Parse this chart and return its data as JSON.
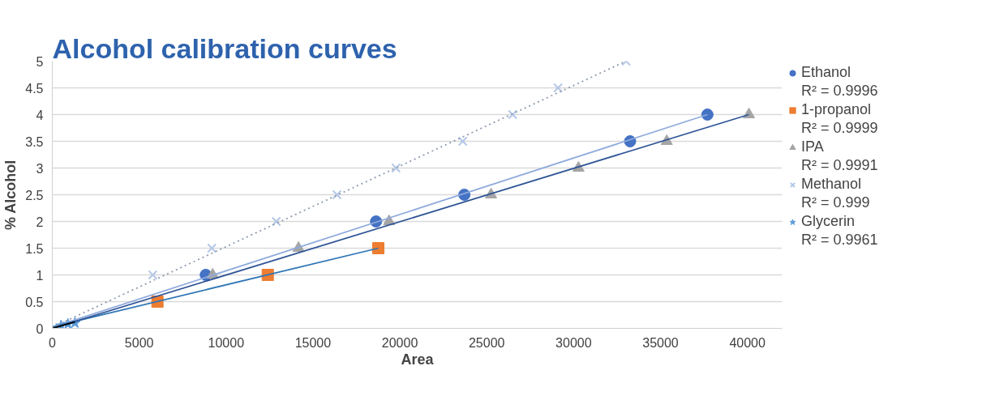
{
  "chart_data": {
    "type": "scatter",
    "title": "Alcohol calibration curves",
    "xlabel": "Area",
    "ylabel": "% Alcohol",
    "xlim": [
      0,
      42000
    ],
    "ylim": [
      0,
      5
    ],
    "xticks": [
      0,
      5000,
      10000,
      15000,
      20000,
      25000,
      30000,
      35000,
      40000
    ],
    "yticks": [
      0,
      {
        "value": 0.5,
        "label": "0.5"
      },
      1,
      {
        "value": 1.5,
        "label": "1.5"
      },
      2,
      {
        "value": 2.5,
        "label": "2.5"
      },
      3,
      {
        "value": 3.5,
        "label": "3.5"
      },
      4,
      {
        "value": 4.5,
        "label": "4.5"
      },
      5
    ],
    "grid": "y",
    "legend": "right",
    "series": [
      {
        "name": "Ethanol",
        "color": "#4472c4",
        "marker": "circle",
        "x": [
          8830,
          18630,
          23710,
          33250,
          37700
        ],
        "values": [
          1,
          2,
          2.5,
          3.5,
          4
        ]
      },
      {
        "name": "1-propanol",
        "color": "#ed7d31",
        "marker": "square",
        "x": [
          6050,
          12400,
          18760
        ],
        "values": [
          0.5,
          1,
          1.5
        ]
      },
      {
        "name": "IPA",
        "color": "#a5a5a5",
        "marker": "triangle",
        "x": [
          9230,
          14170,
          19380,
          25250,
          30280,
          35360,
          40090
        ],
        "values": [
          1,
          1.5,
          2,
          2.5,
          3,
          3.5,
          4
        ]
      },
      {
        "name": "Methanol",
        "color": "#b4c7e7",
        "marker": "cross",
        "x": [
          5780,
          9180,
          12890,
          16380,
          19780,
          23620,
          26490,
          29100,
          33020
        ],
        "values": [
          1,
          1.5,
          2,
          2.5,
          3,
          3.5,
          4,
          4.5,
          5
        ]
      },
      {
        "name": "Glycerin",
        "color": "#5b9bd5",
        "marker": "star",
        "x": [
          500,
          900,
          1300
        ],
        "values": [
          0.05,
          0.08,
          0.1
        ]
      },
      {
        "type": "line",
        "color": "#8faadc",
        "x": [
          0,
          37700
        ],
        "values": [
          0.02,
          4.0
        ]
      },
      {
        "type": "line",
        "color": "#2e75b6",
        "x": [
          0,
          18760
        ],
        "values": [
          0.03,
          1.5
        ]
      },
      {
        "type": "line",
        "color": "#2f5597",
        "x": [
          0,
          40090
        ],
        "values": [
          0.0,
          4.0
        ]
      },
      {
        "type": "line",
        "color": "#8e9bb0",
        "line_style": "dotted",
        "x": [
          0,
          33020
        ],
        "values": [
          0.02,
          5.0
        ]
      },
      {
        "type": "line",
        "color": "#000000",
        "x": [
          0,
          1300
        ],
        "values": [
          0.0,
          0.12
        ]
      }
    ],
    "annotations": [
      "R² = 0.9996",
      "R² = 0.9999",
      "R² = 0.9991",
      "R² = 0.999",
      "R² = 0.9961"
    ]
  }
}
